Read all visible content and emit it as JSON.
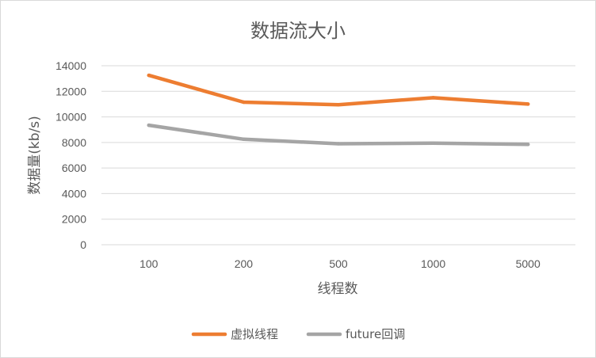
{
  "chart_data": {
    "type": "line",
    "title": "数据流大小",
    "xlabel": "线程数",
    "ylabel": "数据量(kb/s)",
    "categories": [
      "100",
      "200",
      "500",
      "1000",
      "5000"
    ],
    "ylim": [
      0,
      14000
    ],
    "yticks": [
      0,
      2000,
      4000,
      6000,
      8000,
      10000,
      12000,
      14000
    ],
    "grid": true,
    "legend_position": "bottom",
    "series": [
      {
        "name": "虚拟线程",
        "color": "#ED7D31",
        "values": [
          13250,
          11150,
          10950,
          11500,
          11000
        ]
      },
      {
        "name": "future回调",
        "color": "#A5A5A5",
        "values": [
          9350,
          8250,
          7900,
          7950,
          7850
        ]
      }
    ]
  }
}
